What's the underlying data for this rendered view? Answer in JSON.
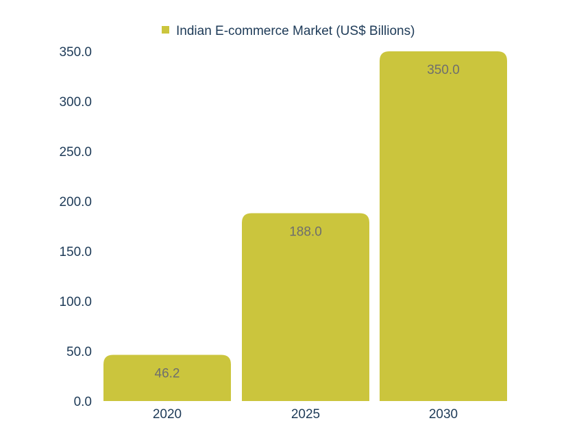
{
  "colors": {
    "bar": "#cbc53d",
    "text": "#1d3a57",
    "data_label": "#6e6e6e"
  },
  "chart_data": {
    "type": "bar",
    "title": "",
    "xlabel": "",
    "ylabel": "",
    "categories": [
      "2020",
      "2025",
      "2030"
    ],
    "series": [
      {
        "name": "Indian E-commerce Market (US$ Billions)",
        "values": [
          46.2,
          188.0,
          350.0
        ]
      }
    ],
    "data_labels": [
      "46.2",
      "188.0",
      "350.0"
    ],
    "ylim": [
      0,
      350
    ],
    "yticks": [
      "0.0",
      "50.0",
      "100.0",
      "150.0",
      "200.0",
      "250.0",
      "300.0",
      "350.0"
    ],
    "ytick_values": [
      0,
      50,
      100,
      150,
      200,
      250,
      300,
      350
    ],
    "legend_position": "top",
    "grid": false
  }
}
